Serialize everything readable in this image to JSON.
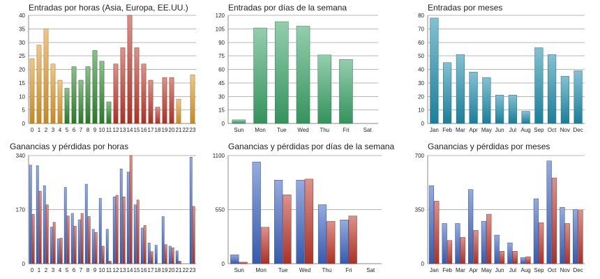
{
  "chart_data": [
    {
      "type": "bar",
      "title": "Entradas por horas (Asia, Europa, EE.UU.)",
      "categories": [
        "0",
        "1",
        "2",
        "3",
        "4",
        "5",
        "6",
        "7",
        "8",
        "9",
        "10",
        "11",
        "12",
        "13",
        "14",
        "15",
        "16",
        "17",
        "18",
        "19",
        "20",
        "21",
        "22",
        "23"
      ],
      "values": [
        24,
        29,
        35,
        22,
        16,
        13,
        21,
        16,
        21,
        27,
        23,
        8,
        22,
        28,
        40,
        28,
        22,
        16,
        6,
        17,
        17,
        9,
        0,
        18
      ],
      "bar_colors": [
        "#e09a2a",
        "#e09a2a",
        "#e09a2a",
        "#e09a2a",
        "#e09a2a",
        "#2f8a2f",
        "#2f8a2f",
        "#2f8a2f",
        "#2f8a2f",
        "#2f8a2f",
        "#2f8a2f",
        "#2f8a2f",
        "#c0392b",
        "#c0392b",
        "#c0392b",
        "#c0392b",
        "#c0392b",
        "#c0392b",
        "#c0392b",
        "#c0392b",
        "#c0392b",
        "#e09a2a",
        "#e09a2a",
        "#e09a2a"
      ],
      "yticks": [
        0,
        5,
        10,
        15,
        20,
        25,
        30,
        35,
        40
      ],
      "ylim": [
        0,
        40
      ],
      "grid": true
    },
    {
      "type": "bar",
      "title": "Entradas por días de la semana",
      "categories": [
        "Sun",
        "Mon",
        "Tue",
        "Wed",
        "Thu",
        "Fri",
        "Sat"
      ],
      "values": [
        4,
        106,
        113,
        108,
        76,
        71,
        0
      ],
      "color": "#3ca66a",
      "yticks": [
        0,
        15,
        30,
        45,
        60,
        75,
        90,
        105,
        120
      ],
      "ylim": [
        0,
        120
      ],
      "grid": true
    },
    {
      "type": "bar",
      "title": "Entradas por meses",
      "categories": [
        "Jan",
        "Feb",
        "Mar",
        "Apr",
        "May",
        "Jun",
        "Jul",
        "Aug",
        "Sep",
        "Oct",
        "Nov",
        "Dec"
      ],
      "values": [
        78,
        45,
        51,
        38,
        34,
        21,
        21,
        9,
        56,
        51,
        35,
        39
      ],
      "color": "#1f8fae",
      "yticks": [
        0,
        10,
        20,
        30,
        40,
        50,
        60,
        70,
        80
      ],
      "ylim": [
        0,
        80
      ],
      "grid": true
    },
    {
      "type": "bar",
      "title": "Ganancias y pérdidas por horas",
      "categories": [
        "0",
        "1",
        "2",
        "3",
        "4",
        "5",
        "6",
        "7",
        "8",
        "9",
        "10",
        "11",
        "12",
        "13",
        "14",
        "15",
        "16",
        "17",
        "18",
        "19",
        "20",
        "21",
        "22",
        "23"
      ],
      "series": [
        {
          "values": [
            310,
            308,
            245,
            115,
            78,
            240,
            158,
            138,
            250,
            108,
            205,
            108,
            210,
            298,
            288,
            185,
            112,
            65,
            58,
            148,
            55,
            40,
            0,
            335
          ],
          "color": "#3f66c4"
        },
        {
          "values": [
            155,
            228,
            185,
            130,
            80,
            150,
            118,
            158,
            148,
            98,
            55,
            8,
            215,
            210,
            340,
            200,
            120,
            38,
            0,
            60,
            50,
            8,
            0,
            180
          ],
          "color": "#c0392b"
        }
      ],
      "yticks": [
        0,
        170,
        340
      ],
      "ylim": [
        0,
        340
      ],
      "grid": true
    },
    {
      "type": "bar",
      "title": "Ganancias y pérdidas por días de la semana",
      "categories": [
        "Sun",
        "Mon",
        "Tue",
        "Wed",
        "Thu",
        "Fri",
        "Sat"
      ],
      "series": [
        {
          "values": [
            90,
            1035,
            850,
            850,
            600,
            445,
            0
          ],
          "color": "#3f66c4"
        },
        {
          "values": [
            15,
            370,
            700,
            860,
            430,
            485,
            0
          ],
          "color": "#c0392b"
        }
      ],
      "yticks": [
        0,
        550,
        1100
      ],
      "ylim": [
        0,
        1100
      ],
      "grid": true
    },
    {
      "type": "bar",
      "title": "Ganancias y pérdidas por meses",
      "categories": [
        "Jan",
        "Feb",
        "Mar",
        "Apr",
        "May",
        "Jun",
        "Jul",
        "Aug",
        "Sep",
        "Oct",
        "Nov",
        "Dec"
      ],
      "series": [
        {
          "values": [
            505,
            260,
            260,
            480,
            275,
            185,
            135,
            40,
            420,
            665,
            365,
            350
          ],
          "color": "#3f66c4"
        },
        {
          "values": [
            405,
            150,
            170,
            215,
            320,
            80,
            80,
            45,
            265,
            555,
            260,
            345
          ],
          "color": "#c0392b"
        }
      ],
      "yticks": [
        0,
        350,
        700
      ],
      "ylim": [
        0,
        700
      ],
      "grid": true
    }
  ]
}
